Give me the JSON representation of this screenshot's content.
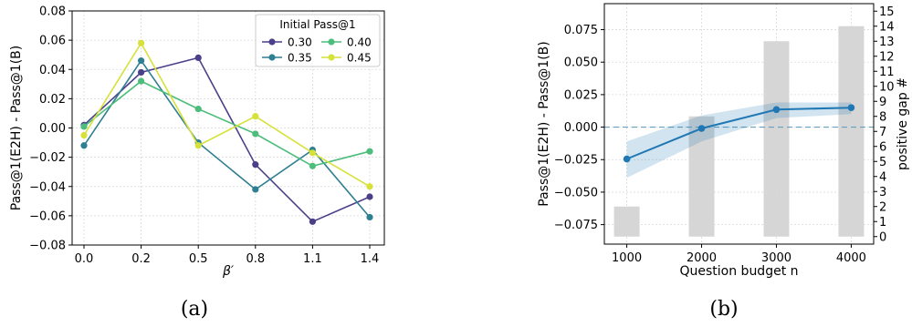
{
  "figure": {
    "captions": [
      "(a)",
      "(b)"
    ]
  },
  "chart_data": [
    {
      "type": "line",
      "title": "",
      "xlabel": "β′",
      "ylabel": "Pass@1(E2H) - Pass@1(B)",
      "x": [
        0.0,
        0.2,
        0.5,
        0.8,
        1.1,
        1.4
      ],
      "x_tick_labels": [
        "0.0",
        "0.2",
        "0.5",
        "0.8",
        "1.1",
        "1.4"
      ],
      "ylim": [
        -0.08,
        0.08
      ],
      "y_ticks": [
        0.08,
        0.06,
        0.04,
        0.02,
        0.0,
        -0.02,
        -0.04,
        -0.06,
        -0.08
      ],
      "y_tick_labels": [
        "0.08",
        "0.06",
        "0.04",
        "0.02",
        "0.00",
        "−0.02",
        "−0.04",
        "−0.06",
        "−0.08"
      ],
      "grid": true,
      "legend": {
        "title": "Initial Pass@1",
        "placement": "top-right",
        "columns": 2
      },
      "series": [
        {
          "name": "0.30",
          "color": "#4b3f8a",
          "values": [
            0.002,
            0.038,
            0.048,
            -0.025,
            -0.064,
            -0.047
          ]
        },
        {
          "name": "0.35",
          "color": "#2f7f92",
          "values": [
            -0.012,
            0.046,
            -0.01,
            -0.042,
            -0.015,
            -0.061
          ]
        },
        {
          "name": "0.40",
          "color": "#4dbd7c",
          "values": [
            0.001,
            0.032,
            0.013,
            -0.004,
            -0.026,
            -0.016
          ]
        },
        {
          "name": "0.45",
          "color": "#d6e23a",
          "values": [
            -0.005,
            0.058,
            -0.012,
            0.008,
            -0.017,
            -0.04
          ]
        }
      ]
    },
    {
      "type": "line",
      "title": "",
      "xlabel": "Question budget n",
      "ylabel": "Pass@1(E2H) - Pass@1(B)",
      "y2label": "positive gap #",
      "x": [
        1000,
        2000,
        3000,
        4000
      ],
      "x_tick_labels": [
        "1000",
        "2000",
        "3000",
        "4000"
      ],
      "xlim": [
        700,
        4300
      ],
      "ylim": [
        -0.09,
        0.095
      ],
      "y_ticks": [
        0.075,
        0.05,
        0.025,
        0.0,
        -0.025,
        -0.05,
        -0.075
      ],
      "y_tick_labels": [
        "0.075",
        "0.050",
        "0.025",
        "0.000",
        "−0.025",
        "−0.050",
        "−0.075"
      ],
      "y2lim": [
        -0.5,
        15.5
      ],
      "y2_ticks": [
        0,
        1,
        2,
        3,
        4,
        5,
        6,
        7,
        8,
        9,
        10,
        11,
        12,
        13,
        14,
        15
      ],
      "y2_tick_labels": [
        "0",
        "1",
        "2",
        "3",
        "4",
        "5",
        "6",
        "7",
        "8",
        "9",
        "10",
        "11",
        "12",
        "13",
        "14",
        "15"
      ],
      "grid": true,
      "reference_line": {
        "y": 0.0,
        "style": "dashed",
        "color": "#6a9fc0"
      },
      "bars": {
        "axis": "y2",
        "color": "#d6d6d6",
        "values": [
          2,
          8,
          13,
          14
        ]
      },
      "series": [
        {
          "color": "#1f77b4",
          "values": [
            -0.0245,
            -0.001,
            0.0135,
            0.015
          ],
          "band_lower": [
            -0.039,
            -0.011,
            0.007,
            0.01
          ],
          "band_upper": [
            -0.011,
            0.009,
            0.019,
            0.019
          ]
        }
      ]
    }
  ]
}
